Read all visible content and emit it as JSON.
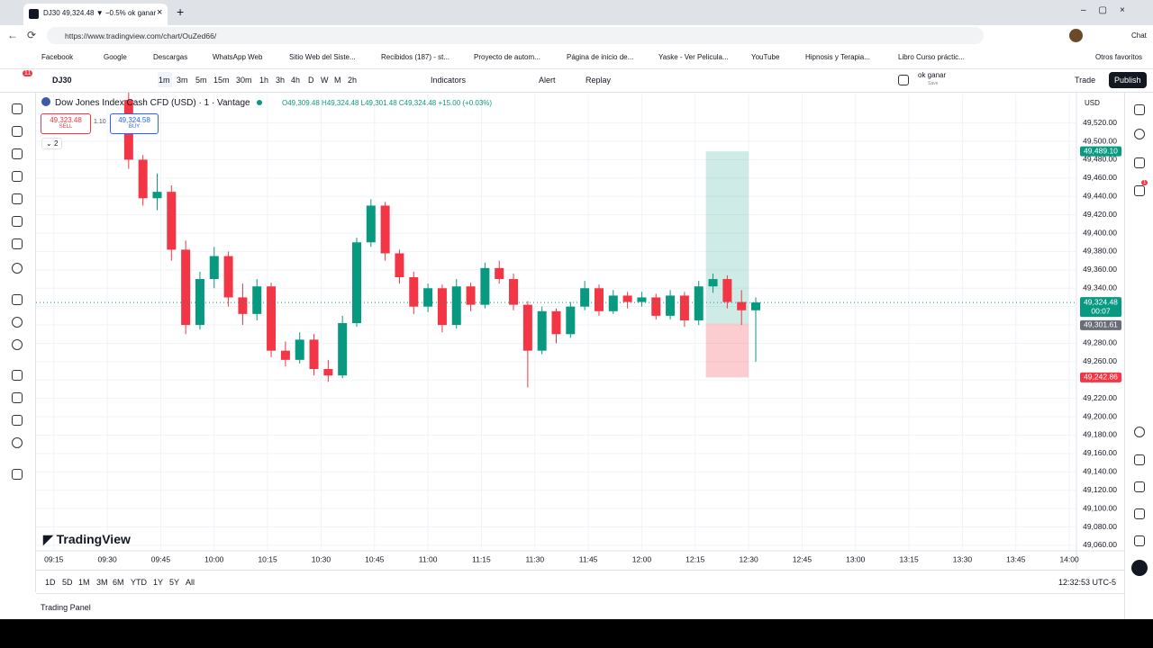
{
  "browser": {
    "tab_title": "DJ30 49,324.48 ▼ −0.5% ok ganar",
    "url": "https://www.tradingview.com/chart/OuZed66/",
    "chat": "Chat",
    "bookmarks": [
      "Facebook",
      "Google",
      "Descargas",
      "WhatsApp Web",
      "Sitio Web del Siste...",
      "Recibidos (187) - st...",
      "Proyecto de autom...",
      "Página de inicio de...",
      "Yaske - Ver Pelicula...",
      "YouTube",
      "Hipnosis y Terapia...",
      "Libro Curso práctic..."
    ],
    "other_bookmarks": "Otros favoritos"
  },
  "toolbar": {
    "notifications": "11",
    "symbol": "DJ30",
    "intervals": [
      "1m",
      "3m",
      "5m",
      "15m",
      "30m",
      "1h",
      "3h",
      "4h",
      "D",
      "W",
      "M",
      "2h"
    ],
    "indicators": "Indicators",
    "alert": "Alert",
    "replay": "Replay",
    "layout_name": "ok ganar",
    "layout_status": "Save",
    "trade": "Trade",
    "publish": "Publish"
  },
  "legend": {
    "title": "Dow Jones Index Cash CFD (USD) · 1 · Vantage",
    "ohlc": "O49,309.48 H49,324.48 L49,301.48 C49,324.48 +15.00 (+0.03%)",
    "sell_price": "49,323.48",
    "sell": "SELL",
    "spread": "1.10",
    "buy_price": "49,324.58",
    "buy": "BUY",
    "collapsed": "2"
  },
  "chart_data": {
    "type": "candlestick",
    "currency": "USD",
    "watermark": "TradingView",
    "up_color": "#089981",
    "down_color": "#f23645",
    "grid": true,
    "ylim": [
      49056,
      49551
    ],
    "yticks": [
      {
        "value": 49060,
        "label": "49,060.00"
      },
      {
        "value": 49080,
        "label": "49,080.00"
      },
      {
        "value": 49100,
        "label": "49,100.00"
      },
      {
        "value": 49120,
        "label": "49,120.00"
      },
      {
        "value": 49140,
        "label": "49,140.00"
      },
      {
        "value": 49160,
        "label": "49,160.00"
      },
      {
        "value": 49180,
        "label": "49,180.00"
      },
      {
        "value": 49200,
        "label": "49,200.00"
      },
      {
        "value": 49220,
        "label": "49,220.00"
      },
      {
        "value": 49240,
        "label": "49,240.00"
      },
      {
        "value": 49260,
        "label": "49,260.00"
      },
      {
        "value": 49280,
        "label": "49,280.00"
      },
      {
        "value": 49300,
        "label": "49,300.00"
      },
      {
        "value": 49320,
        "label": "49,320.00"
      },
      {
        "value": 49340,
        "label": "49,340.00"
      },
      {
        "value": 49360,
        "label": "49,360.00"
      },
      {
        "value": 49380,
        "label": "49,380.00"
      },
      {
        "value": 49400,
        "label": "49,400.00"
      },
      {
        "value": 49420,
        "label": "49,420.00"
      },
      {
        "value": 49440,
        "label": "49,440.00"
      },
      {
        "value": 49460,
        "label": "49,460.00"
      },
      {
        "value": 49480,
        "label": "49,480.00"
      },
      {
        "value": 49500,
        "label": "49,500.00"
      },
      {
        "value": 49520,
        "label": "49,520.00"
      }
    ],
    "xlim": [
      "09:10",
      "14:02"
    ],
    "xticks": [
      "09:15",
      "09:30",
      "09:45",
      "10:00",
      "10:15",
      "10:30",
      "10:45",
      "11:00",
      "11:15",
      "11:30",
      "11:45",
      "12:00",
      "12:15",
      "12:30",
      "12:45",
      "13:00",
      "13:15",
      "13:30",
      "13:45",
      "14:00"
    ],
    "candles": {
      "time": [
        "09:36",
        "09:40",
        "09:44",
        "09:48",
        "09:52",
        "09:56",
        "10:00",
        "10:04",
        "10:08",
        "10:12",
        "10:16",
        "10:20",
        "10:24",
        "10:28",
        "10:32",
        "10:36",
        "10:40",
        "10:44",
        "10:48",
        "10:52",
        "10:56",
        "11:00",
        "11:04",
        "11:08",
        "11:12",
        "11:16",
        "11:20",
        "11:24",
        "11:28",
        "11:32",
        "11:36",
        "11:40",
        "11:44",
        "11:48",
        "11:52",
        "11:56",
        "12:00",
        "12:04",
        "12:08",
        "12:12",
        "12:16",
        "12:20",
        "12:24",
        "12:28",
        "12:32"
      ],
      "open": [
        49545,
        49480,
        49438,
        49445,
        49382,
        49300,
        49350,
        49375,
        49330,
        49312,
        49342,
        49272,
        49262,
        49284,
        49252,
        49245,
        49302,
        49390,
        49430,
        49378,
        49352,
        49320,
        49340,
        49300,
        49342,
        49322,
        49362,
        49350,
        49322,
        49272,
        49315,
        49290,
        49320,
        49340,
        49315,
        49332,
        49325,
        49330,
        49310,
        49332,
        49305,
        49342,
        49350,
        49325,
        49316
      ],
      "high": [
        49555,
        49485,
        49465,
        49452,
        49392,
        49358,
        49385,
        49380,
        49345,
        49350,
        49346,
        49282,
        49292,
        49290,
        49262,
        49310,
        49395,
        49437,
        49434,
        49382,
        49358,
        49345,
        49344,
        49350,
        49346,
        49368,
        49370,
        49356,
        49326,
        49320,
        49318,
        49325,
        49348,
        49344,
        49338,
        49336,
        49336,
        49334,
        49338,
        49336,
        49348,
        49356,
        49354,
        49338,
        49330
      ],
      "low": [
        49470,
        49430,
        49425,
        49370,
        49290,
        49295,
        49340,
        49320,
        49300,
        49305,
        49265,
        49255,
        49258,
        49245,
        49238,
        49242,
        49298,
        49385,
        49370,
        49345,
        49312,
        49314,
        49292,
        49296,
        49315,
        49318,
        49345,
        49316,
        49232,
        49268,
        49280,
        49286,
        49316,
        49310,
        49312,
        49318,
        49320,
        49306,
        49306,
        49298,
        49300,
        49335,
        49318,
        49300,
        49260
      ],
      "close": [
        49480,
        49438,
        49445,
        49382,
        49300,
        49350,
        49375,
        49330,
        49312,
        49342,
        49272,
        49262,
        49284,
        49252,
        49245,
        49302,
        49390,
        49430,
        49378,
        49352,
        49320,
        49340,
        49300,
        49342,
        49322,
        49362,
        49350,
        49322,
        49272,
        49315,
        49290,
        49320,
        49340,
        49315,
        49332,
        49325,
        49330,
        49310,
        49332,
        49305,
        49342,
        49350,
        49325,
        49316,
        49324.48
      ]
    },
    "current_price": {
      "value": 49324.48,
      "label": "49,324.48",
      "countdown": "00:07"
    },
    "position": {
      "start": "12:18",
      "end": "12:30",
      "target": {
        "value": 49489.1,
        "label": "49,489.10"
      },
      "entry": {
        "value": 49301.61,
        "label": "49,301.61"
      },
      "stop": {
        "value": 49242.86,
        "label": "49,242.86"
      }
    }
  },
  "footer": {
    "ranges": [
      "1D",
      "5D",
      "1M",
      "3M",
      "6M",
      "YTD",
      "1Y",
      "5Y",
      "All"
    ],
    "clock": "12:32:53 UTC-5",
    "trading_panel": "Trading Panel",
    "alerts_badge": "1"
  }
}
